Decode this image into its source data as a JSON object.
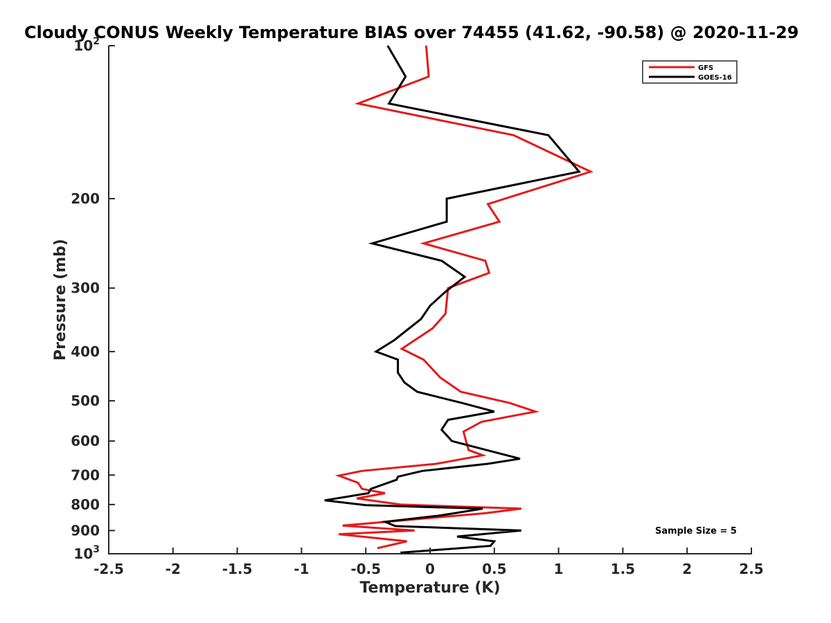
{
  "chart_data": {
    "type": "line",
    "title": "Cloudy CONUS Weekly Temperature BIAS over 74455 (41.62, -90.58) @ 2020-11-29",
    "xlabel": "Temperature (K)",
    "ylabel": "Pressure (mb)",
    "xlim": [
      -2.5,
      2.5
    ],
    "ylim": [
      100,
      1000
    ],
    "y_scale": "log",
    "y_direction": "reversed",
    "grid": false,
    "x_ticks": [
      "-2.5",
      "-2",
      "-1.5",
      "-1",
      "-0.5",
      "0",
      "0.5",
      "1",
      "1.5",
      "2",
      "2.5"
    ],
    "y_ticks": [
      {
        "value": 100,
        "base": "10",
        "exp": "2"
      },
      {
        "value": 200,
        "label": "200"
      },
      {
        "value": 300,
        "label": "300"
      },
      {
        "value": 400,
        "label": "400"
      },
      {
        "value": 500,
        "label": "500"
      },
      {
        "value": 600,
        "label": "600"
      },
      {
        "value": 700,
        "label": "700"
      },
      {
        "value": 800,
        "label": "800"
      },
      {
        "value": 900,
        "label": "900"
      },
      {
        "value": 1000,
        "base": "10",
        "exp": "3"
      }
    ],
    "legend_position": "top-right",
    "annotation": "Sample Size = 5",
    "series": [
      {
        "name": "GFS",
        "color": "#e31a1c",
        "points": [
          [
            -0.03,
            100
          ],
          [
            -0.01,
            115
          ],
          [
            -0.56,
            130
          ],
          [
            0.65,
            150
          ],
          [
            1.25,
            177
          ],
          [
            0.45,
            205
          ],
          [
            0.54,
            222
          ],
          [
            -0.05,
            245
          ],
          [
            0.43,
            265
          ],
          [
            0.46,
            280
          ],
          [
            0.14,
            300
          ],
          [
            0.12,
            337
          ],
          [
            0.02,
            360
          ],
          [
            -0.22,
            395
          ],
          [
            -0.05,
            415
          ],
          [
            0.08,
            450
          ],
          [
            0.24,
            480
          ],
          [
            0.62,
            505
          ],
          [
            0.82,
            525
          ],
          [
            0.4,
            550
          ],
          [
            0.26,
            575
          ],
          [
            0.28,
            600
          ],
          [
            0.3,
            625
          ],
          [
            0.41,
            640
          ],
          [
            0.05,
            665
          ],
          [
            -0.53,
            687
          ],
          [
            -0.71,
            702
          ],
          [
            -0.56,
            725
          ],
          [
            -0.53,
            745
          ],
          [
            -0.35,
            760
          ],
          [
            -0.57,
            778
          ],
          [
            -0.23,
            800
          ],
          [
            0.71,
            815
          ],
          [
            0.43,
            832
          ],
          [
            -0.68,
            880
          ],
          [
            -0.12,
            900
          ],
          [
            -0.71,
            915
          ],
          [
            -0.18,
            945
          ],
          [
            -0.41,
            975
          ]
        ]
      },
      {
        "name": "GOES-16",
        "color": "#000000",
        "points": [
          [
            -0.33,
            100
          ],
          [
            -0.19,
            115
          ],
          [
            -0.32,
            130
          ],
          [
            0.92,
            150
          ],
          [
            1.16,
            177
          ],
          [
            0.13,
            200
          ],
          [
            0.13,
            222
          ],
          [
            -0.45,
            245
          ],
          [
            0.09,
            265
          ],
          [
            0.27,
            285
          ],
          [
            0.12,
            305
          ],
          [
            0.0,
            325
          ],
          [
            -0.07,
            345
          ],
          [
            -0.28,
            380
          ],
          [
            -0.42,
            400
          ],
          [
            -0.25,
            415
          ],
          [
            -0.25,
            440
          ],
          [
            -0.2,
            460
          ],
          [
            -0.1,
            480
          ],
          [
            0.25,
            505
          ],
          [
            0.5,
            525
          ],
          [
            0.14,
            545
          ],
          [
            0.09,
            570
          ],
          [
            0.17,
            600
          ],
          [
            0.44,
            625
          ],
          [
            0.7,
            650
          ],
          [
            0.45,
            665
          ],
          [
            -0.06,
            687
          ],
          [
            -0.25,
            705
          ],
          [
            -0.26,
            715
          ],
          [
            -0.46,
            745
          ],
          [
            -0.48,
            760
          ],
          [
            -0.82,
            785
          ],
          [
            -0.5,
            802
          ],
          [
            0.41,
            815
          ],
          [
            0.09,
            840
          ],
          [
            -0.35,
            865
          ],
          [
            -0.27,
            882
          ],
          [
            0.71,
            900
          ],
          [
            0.21,
            925
          ],
          [
            0.5,
            945
          ],
          [
            0.47,
            965
          ],
          [
            -0.23,
            995
          ]
        ]
      }
    ]
  }
}
